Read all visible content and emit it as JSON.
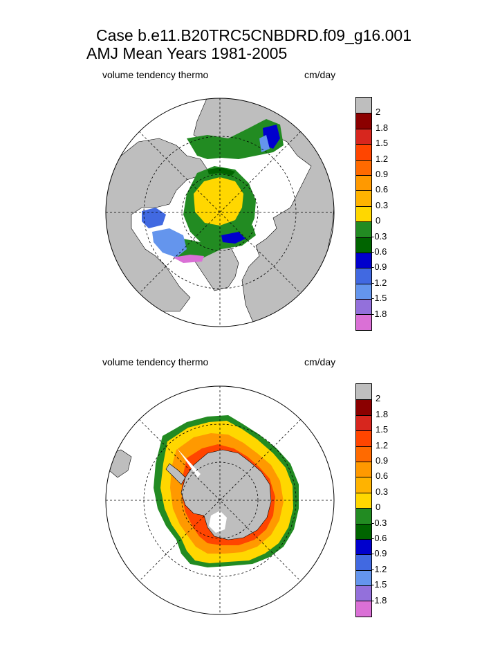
{
  "title": {
    "line1": "Case b.e11.B20TRC5CNBDRD.f09_g16.001",
    "line2": "AMJ Mean   Years 1981-2005"
  },
  "panels": [
    {
      "name": "north",
      "label_left": "volume tendency thermo",
      "label_right": "cm/day"
    },
    {
      "name": "south",
      "label_left": "volume tendency thermo",
      "label_right": "cm/day"
    }
  ],
  "colorbar": {
    "levels": [
      "2",
      "1.8",
      "1.5",
      "1.2",
      "0.9",
      "0.6",
      "0.3",
      "0",
      "-0.3",
      "-0.6",
      "-0.9",
      "-1.2",
      "-1.5",
      "-1.8"
    ],
    "colors": [
      "#bebebe",
      "#8b0000",
      "#d7261e",
      "#ff4500",
      "#ff6a00",
      "#ff9900",
      "#ffb300",
      "#ffd700",
      "#228b22",
      "#006400",
      "#0000cd",
      "#4169e1",
      "#6495ed",
      "#9370db",
      "#da70d6"
    ]
  },
  "colors": {
    "land": "#bebebe",
    "grid": "#000000"
  }
}
